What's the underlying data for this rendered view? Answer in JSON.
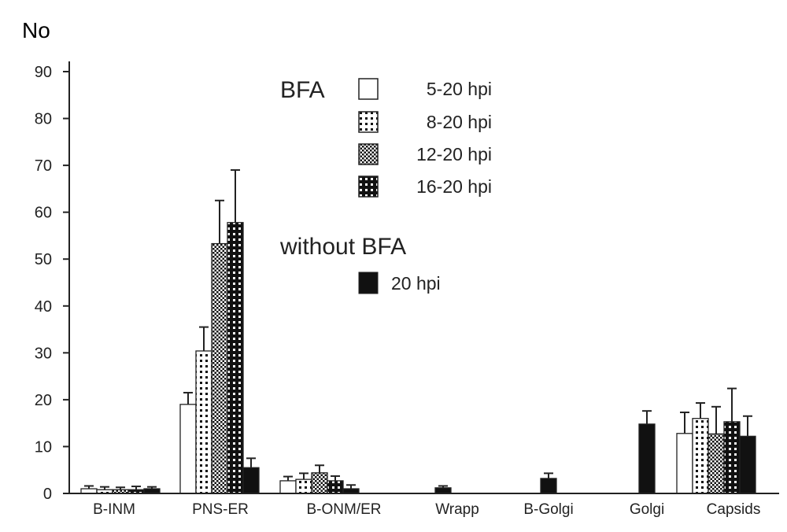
{
  "chart_data": {
    "type": "bar",
    "title": "",
    "ylabel": "No",
    "xlabel": "",
    "ylim": [
      0,
      90
    ],
    "yticks": [
      0,
      10,
      20,
      30,
      40,
      50,
      60,
      70,
      80,
      90
    ],
    "grid": false,
    "legend_placement": "top-center",
    "legend_groups": [
      {
        "title": "BFA",
        "entries": [
          "5-20 hpi",
          "8-20 hpi",
          "12-20 hpi",
          "16-20 hpi"
        ]
      },
      {
        "title": "without BFA",
        "entries": [
          "20 hpi"
        ]
      }
    ],
    "categories": [
      "B-INM",
      "PNS-ER",
      "B-ONM/ER",
      "Wrapp",
      "B-Golgi",
      "Golgi",
      "Capsids"
    ],
    "series": [
      {
        "name": "BFA 5-20 hpi",
        "values": [
          1.0,
          19.0,
          2.7,
          null,
          null,
          null,
          12.8
        ],
        "error_upper": [
          1.6,
          21.5,
          3.6,
          null,
          null,
          null,
          17.3
        ]
      },
      {
        "name": "BFA 8-20 hpi",
        "values": [
          0.8,
          30.4,
          3.0,
          null,
          null,
          null,
          16.0
        ],
        "error_upper": [
          1.4,
          35.5,
          4.3,
          null,
          null,
          null,
          19.3
        ]
      },
      {
        "name": "BFA 12-20 hpi",
        "values": [
          0.8,
          53.3,
          4.4,
          null,
          null,
          null,
          12.7
        ],
        "error_upper": [
          1.3,
          62.5,
          6.0,
          null,
          null,
          null,
          18.5
        ]
      },
      {
        "name": "BFA 16-20 hpi",
        "values": [
          0.8,
          57.8,
          2.7,
          null,
          null,
          null,
          15.3
        ],
        "error_upper": [
          1.5,
          69.0,
          3.7,
          null,
          null,
          null,
          22.4
        ]
      },
      {
        "name": "without BFA 20 hpi",
        "values": [
          1.0,
          5.5,
          1.0,
          1.2,
          3.2,
          14.8,
          12.2
        ],
        "error_upper": [
          1.4,
          7.5,
          1.8,
          1.6,
          4.3,
          17.6,
          16.5
        ]
      }
    ]
  }
}
